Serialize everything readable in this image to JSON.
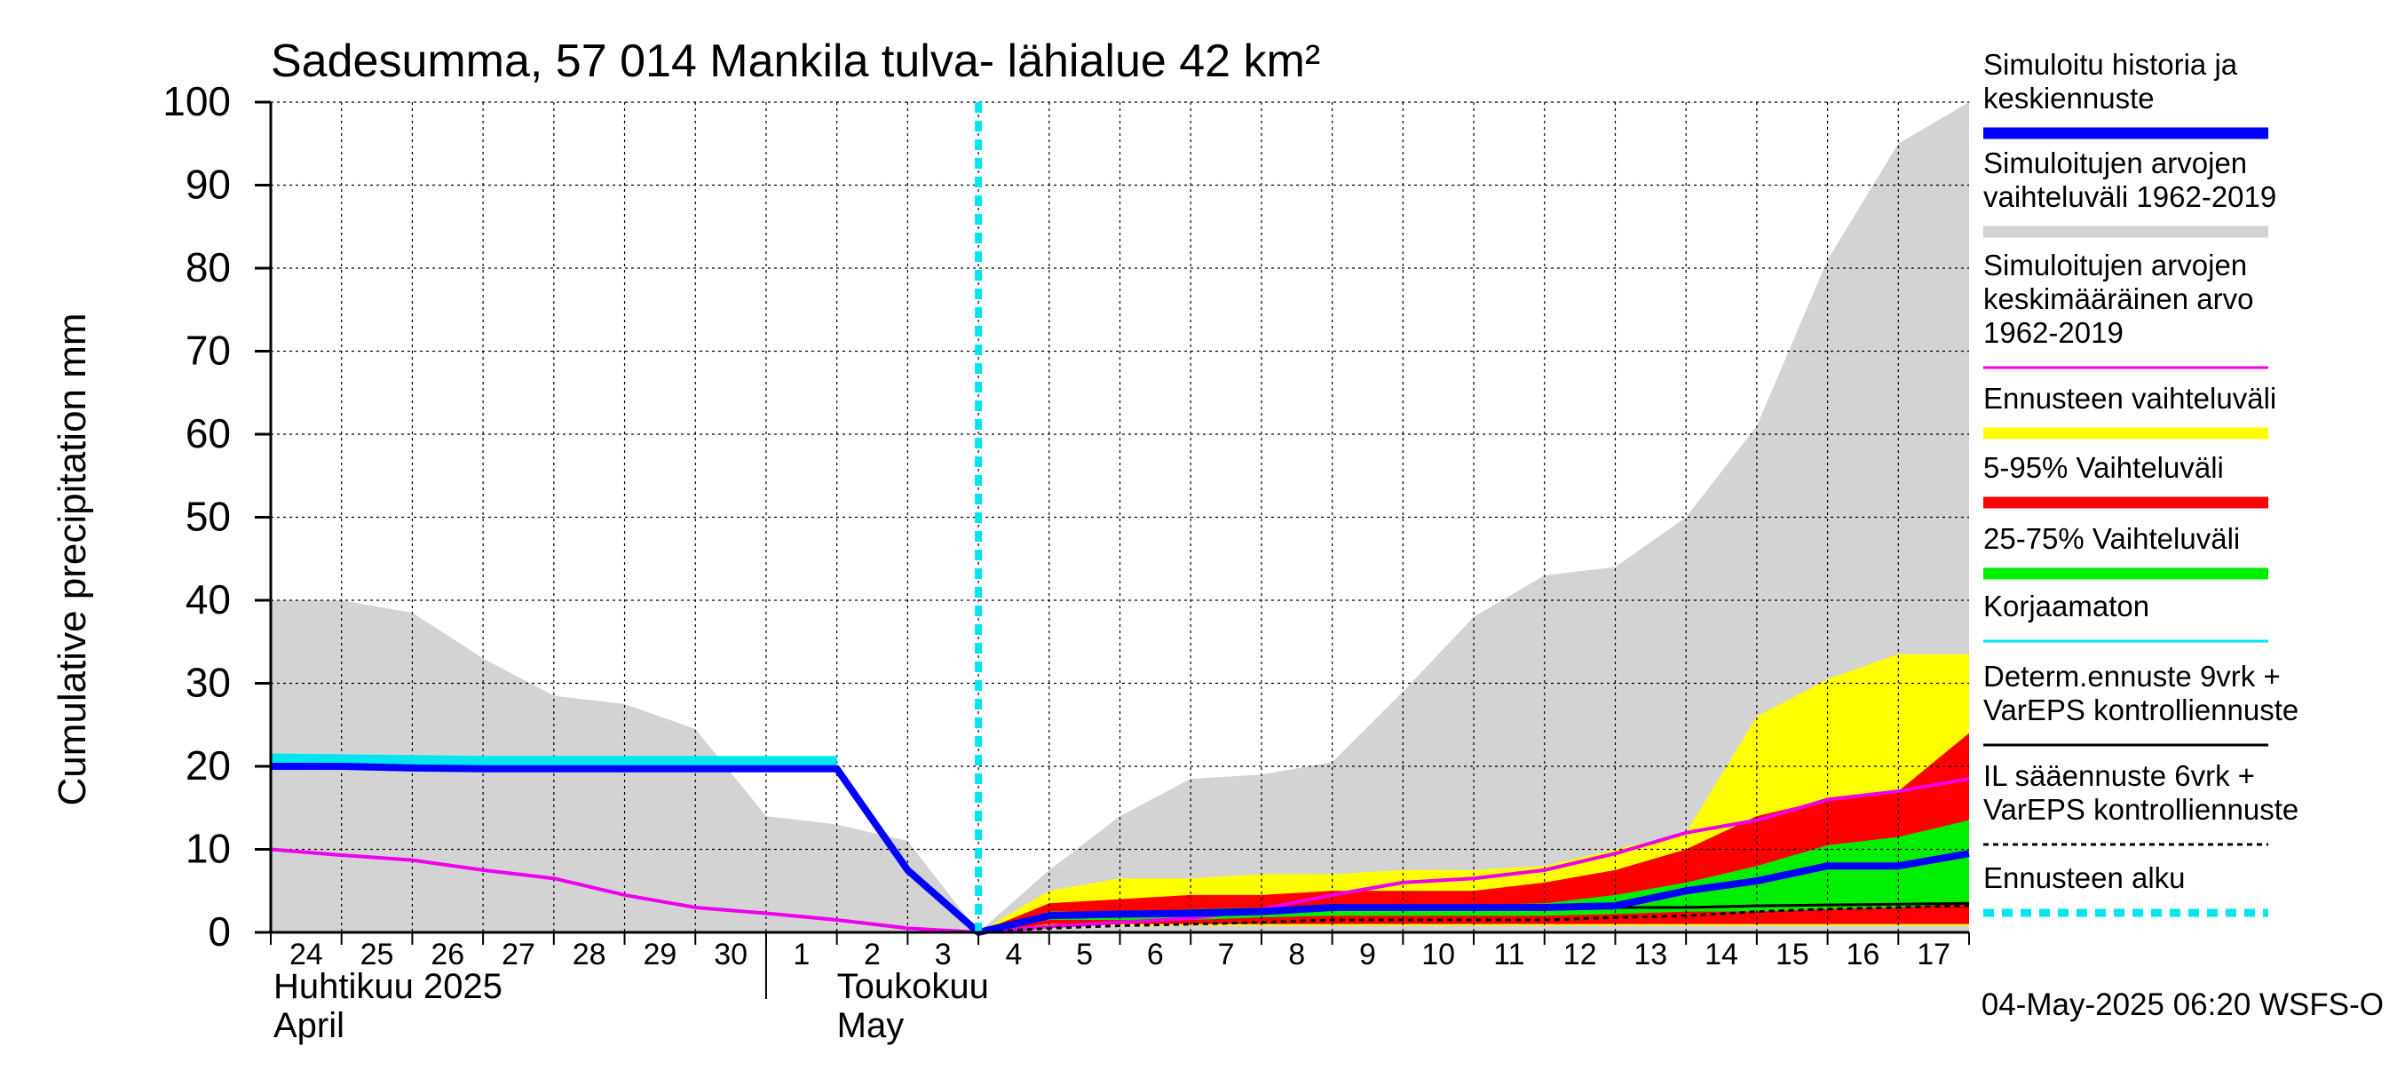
{
  "chart_data": {
    "type": "area",
    "title": "Sadesumma, 57 014 Mankila tulva- lähialue 42 km²",
    "ylabel": "Cumulative precipitation   mm",
    "ylim": [
      0,
      100
    ],
    "yticks": [
      0,
      10,
      20,
      30,
      40,
      50,
      60,
      70,
      80,
      90,
      100
    ],
    "x_day_labels": [
      "24",
      "25",
      "26",
      "27",
      "28",
      "29",
      "30",
      "1",
      "2",
      "3",
      "4",
      "5",
      "6",
      "7",
      "8",
      "9",
      "10",
      "11",
      "12",
      "13",
      "14",
      "15",
      "16",
      "17"
    ],
    "month_labels": [
      {
        "fi": "Huhtikuu  2025",
        "en": "April"
      },
      {
        "fi": "Toukokuu",
        "en": "May"
      }
    ],
    "forecast_start_day": 10,
    "footer": "04-May-2025 06:20 WSFS-O",
    "colors": {
      "sim_range": "#d3d3d3",
      "hist_mean": "#0000ff",
      "hist_band": "#00e5ee",
      "mean_clim": "#ee00ee",
      "forecast_range": "#ffff00",
      "p5_95": "#ff0000",
      "p25_75": "#00ee00",
      "determ": "#000000",
      "forecast_start": "#00e5ee"
    },
    "series": [
      {
        "name": "Simuloitujen arvojen vaihteluväli 1962-2019",
        "kind": "band",
        "x": [
          0,
          1,
          2,
          3,
          4,
          5,
          6,
          7,
          8,
          9,
          10,
          11,
          12,
          13,
          14,
          15,
          16,
          17,
          18,
          19,
          20,
          21,
          22,
          23,
          24
        ],
        "low": [
          0,
          0,
          0,
          0,
          0,
          0,
          0,
          0,
          0,
          0,
          0,
          0,
          0,
          0,
          0,
          0,
          0,
          0,
          0,
          0,
          0,
          0,
          0,
          0,
          0
        ],
        "high": [
          40,
          40,
          38.5,
          33,
          28.5,
          27.5,
          24.5,
          14,
          13,
          11,
          0,
          7.5,
          14,
          18.5,
          19,
          20.5,
          29,
          38,
          43,
          44,
          50,
          61,
          81,
          95,
          100
        ]
      },
      {
        "name": "Ennusteen vaihteluväli",
        "kind": "band",
        "x": [
          10,
          11,
          12,
          13,
          14,
          15,
          16,
          17,
          18,
          19,
          20,
          21,
          22,
          23,
          24
        ],
        "low": [
          0,
          0.8,
          0.8,
          0.8,
          0.8,
          0.8,
          0.8,
          0.8,
          0.8,
          0.8,
          0.8,
          0.8,
          0.8,
          0.8,
          0.8
        ],
        "high": [
          0,
          5,
          6.5,
          6.5,
          7,
          7,
          7.5,
          7.5,
          8,
          10,
          12,
          26,
          30.5,
          33.5,
          33.5
        ]
      },
      {
        "name": "5-95% Vaihteluväli",
        "kind": "band",
        "x": [
          10,
          11,
          12,
          13,
          14,
          15,
          16,
          17,
          18,
          19,
          20,
          21,
          22,
          23,
          24
        ],
        "low": [
          0,
          1,
          1,
          1,
          1,
          1,
          1,
          1,
          1,
          1,
          1,
          1,
          1,
          1,
          1
        ],
        "high": [
          0,
          3.5,
          4,
          4.5,
          4.5,
          5,
          5,
          5,
          6,
          7.5,
          10,
          14,
          16,
          17,
          24
        ]
      },
      {
        "name": "25-75% Vaihteluväli",
        "kind": "band",
        "x": [
          10,
          11,
          12,
          13,
          14,
          15,
          16,
          17,
          18,
          19,
          20,
          21,
          22,
          23,
          24
        ],
        "low": [
          0,
          1.5,
          1.5,
          1.5,
          1.8,
          2,
          2,
          2,
          2,
          2.2,
          2.5,
          2.5,
          2.8,
          3,
          3.5
        ],
        "high": [
          0,
          2.5,
          2.5,
          2.8,
          3,
          3.3,
          3.3,
          3.3,
          3.5,
          4.5,
          6,
          8,
          10.5,
          11.5,
          13.5
        ]
      },
      {
        "name": "Simuloitu historia ja keskiennuste",
        "kind": "line",
        "x": [
          0,
          1,
          2,
          3,
          4,
          5,
          6,
          7,
          8,
          9,
          10,
          11,
          12,
          13,
          14,
          15,
          16,
          17,
          18,
          19,
          20,
          21,
          22,
          23,
          24
        ],
        "values": [
          20,
          20,
          19.8,
          19.7,
          19.7,
          19.7,
          19.7,
          19.7,
          19.7,
          7.5,
          0,
          2,
          2.2,
          2.3,
          2.5,
          3,
          3,
          3,
          3,
          3.2,
          5,
          6.2,
          8,
          8,
          9.5
        ]
      },
      {
        "name": "Simuloitujen arvojen keskimääräinen arvo 1962-2019",
        "kind": "line",
        "x": [
          0,
          1,
          2,
          3,
          4,
          5,
          6,
          7,
          8,
          9,
          10,
          11,
          12,
          13,
          14,
          15,
          16,
          17,
          18,
          19,
          20,
          21,
          22,
          23,
          24
        ],
        "values": [
          10,
          9.3,
          8.7,
          7.5,
          6.5,
          4.5,
          3,
          2.3,
          1.5,
          0.5,
          0,
          0.7,
          1.2,
          1.7,
          2.8,
          4.5,
          6,
          6.5,
          7.5,
          9.5,
          12,
          13.5,
          16,
          17,
          18.5
        ]
      },
      {
        "name": "Korjaamaton",
        "kind": "line",
        "x": [
          0,
          1,
          2,
          3,
          4,
          5,
          6,
          7,
          8
        ],
        "values": [
          20.8,
          20.7,
          20.6,
          20.5,
          20.5,
          20.5,
          20.5,
          20.5,
          20.5
        ]
      },
      {
        "name": "Determ.ennuste 9vrk + VarEPS kontrolliennuste",
        "kind": "line",
        "x": [
          10,
          11,
          12,
          13,
          14,
          15,
          16,
          17,
          18,
          19,
          20,
          21,
          22,
          23,
          24
        ],
        "values": [
          0,
          2.2,
          2.4,
          2.6,
          2.8,
          3,
          3,
          3,
          3,
          3,
          3,
          3.2,
          3.3,
          3.4,
          3.5
        ]
      },
      {
        "name": "IL sääennuste 6vrk + VarEPS kontrolliennuste",
        "kind": "dashed",
        "x": [
          10,
          11,
          12,
          13,
          14,
          15,
          16,
          17,
          18,
          19,
          20,
          21,
          22,
          23,
          24
        ],
        "values": [
          0,
          0.5,
          0.8,
          1,
          1.2,
          1.5,
          1.5,
          1.5,
          1.5,
          1.8,
          2,
          2.5,
          2.8,
          3,
          3.2
        ]
      }
    ],
    "legend": [
      {
        "label": "Simuloitu historia ja keskiennuste",
        "color": "#0000ff",
        "style": "thick"
      },
      {
        "label": "Simuloitujen arvojen vaihteluväli 1962-2019",
        "color": "#d3d3d3",
        "style": "thick"
      },
      {
        "label": "Simuloitujen arvojen keskimääräinen arvo   1962-2019",
        "color": "#ee00ee",
        "style": "thin"
      },
      {
        "label": "Ennusteen vaihteluväli",
        "color": "#ffff00",
        "style": "thick"
      },
      {
        "label": "5-95% Vaihteluväli",
        "color": "#ff0000",
        "style": "thick"
      },
      {
        "label": "25-75% Vaihteluväli",
        "color": "#00ee00",
        "style": "thick"
      },
      {
        "label": "Korjaamaton",
        "color": "#00e5ee",
        "style": "thin"
      },
      {
        "label": "Determ.ennuste 9vrk + VarEPS kontrolliennuste",
        "color": "#000000",
        "style": "thin"
      },
      {
        "label": "IL sääennuste 6vrk  + VarEPS kontrolliennuste",
        "color": "#000000",
        "style": "dashed"
      },
      {
        "label": "Ennusteen alku",
        "color": "#00e5ee",
        "style": "dotted"
      }
    ]
  }
}
